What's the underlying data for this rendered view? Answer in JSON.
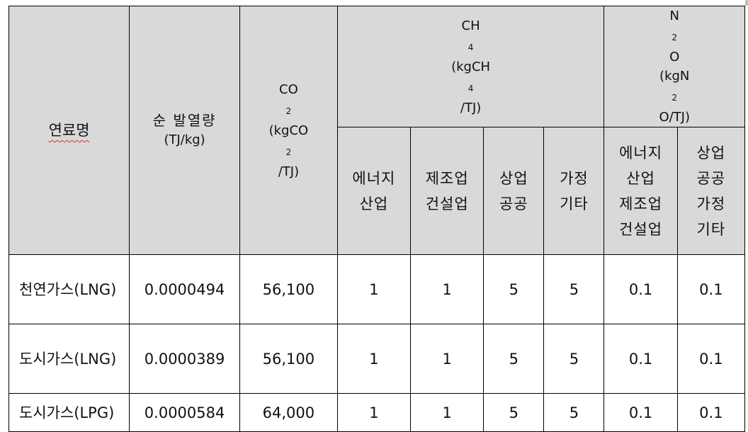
{
  "header": {
    "fuel_name": "연료명",
    "net_calorific_line1": "순 발열량",
    "net_calorific_line2": "(TJ/kg)",
    "co2_line1_main": "CO",
    "co2_line1_sub": "2",
    "co2_line2_pre": "(kgCO",
    "co2_line2_sub": "2",
    "co2_line2_post": "/TJ)",
    "ch4_line1_main": "CH",
    "ch4_line1_sub": "4",
    "ch4_line2_pre": "(kgCH",
    "ch4_line2_sub": "4",
    "ch4_line2_post": "/TJ)",
    "n2o_line1_pre": "N",
    "n2o_line1_sub": "2",
    "n2o_line1_post": "O",
    "n2o_line2_pre": "(kgN",
    "n2o_line2_sub": "2",
    "n2o_line2_post": "O/TJ)",
    "ch4_sub": [
      {
        "l1": "에너지",
        "l2": "산업"
      },
      {
        "l1": "제조업",
        "l2": "건설업"
      },
      {
        "l1": "상업",
        "l2": "공공"
      },
      {
        "l1": "가정",
        "l2": "기타"
      }
    ],
    "n2o_sub": [
      {
        "l1": "에너지",
        "l2": "산업",
        "l3": "제조업",
        "l4": "건설업"
      },
      {
        "l1": "상업",
        "l2": "공공",
        "l3": "가정",
        "l4": "기타"
      }
    ]
  },
  "rows": [
    {
      "fuel": "천연가스(LNG)",
      "ncv": "0.0000494",
      "co2": "56,100",
      "ch4_energy": "1",
      "ch4_mfg": "1",
      "ch4_commercial": "5",
      "ch4_household": "5",
      "n2o_industry": "0.1",
      "n2o_other": "0.1"
    },
    {
      "fuel": "도시가스(LNG)",
      "ncv": "0.0000389",
      "co2": "56,100",
      "ch4_energy": "1",
      "ch4_mfg": "1",
      "ch4_commercial": "5",
      "ch4_household": "5",
      "n2o_industry": "0.1",
      "n2o_other": "0.1"
    },
    {
      "fuel": "도시가스(LPG)",
      "ncv": "0.0000584",
      "co2": "64,000",
      "ch4_energy": "1",
      "ch4_mfg": "1",
      "ch4_commercial": "5",
      "ch4_household": "5",
      "n2o_industry": "0.1",
      "n2o_other": "0.1"
    }
  ],
  "colors": {
    "header_bg": "#d9d9d9",
    "border": "#000000",
    "spellcheck_underline": "#d83030"
  }
}
